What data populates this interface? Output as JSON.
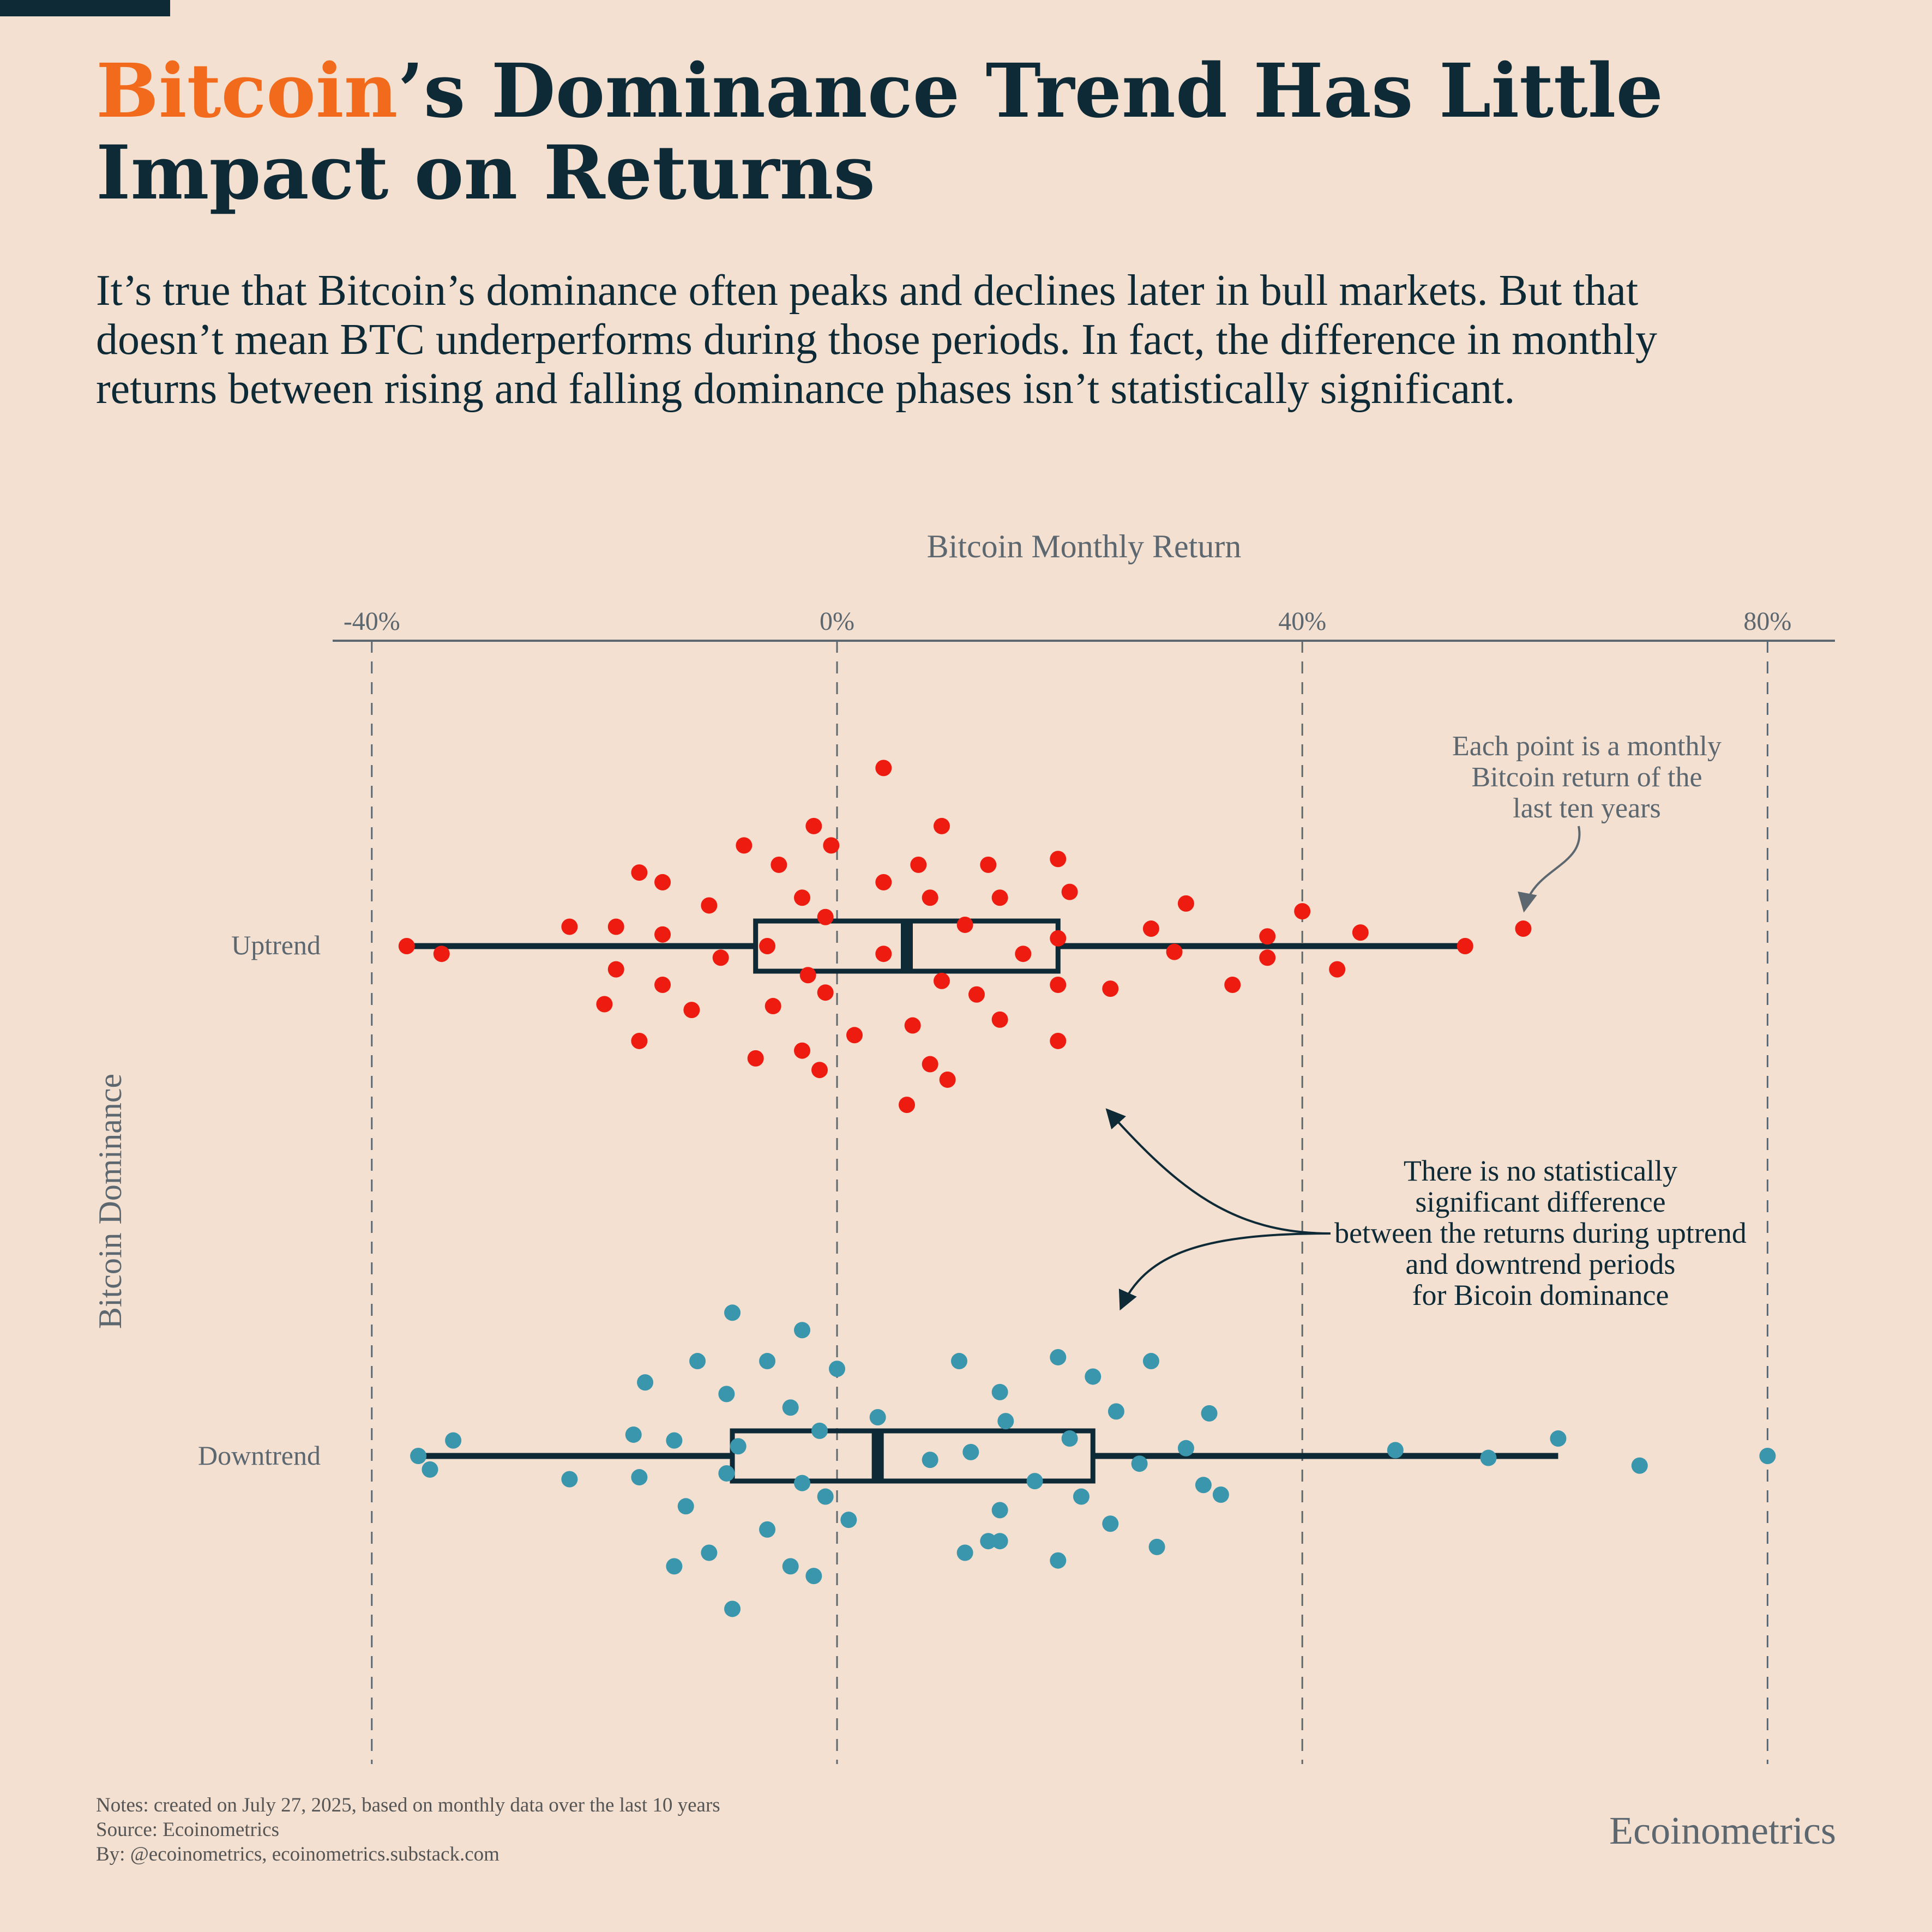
{
  "title": {
    "highlight": "Bitcoin",
    "rest": "’s Dominance Trend Has Little Impact on Returns"
  },
  "subtitle": "It’s true that Bitcoin’s dominance often peaks and declines later in bull markets. But that doesn’t mean BTC underperforms during those periods. In fact, the difference in monthly returns between rising and falling dominance phases isn’t statistically significant.",
  "colors": {
    "background": "#f3e0d0",
    "ink": "#0d2a36",
    "accent": "#f26b1d",
    "uptrend": "#ee1c10",
    "downtrend": "#3a96ad",
    "axis": "#5c6770"
  },
  "chart_data": {
    "type": "scatter",
    "xlabel": "Bitcoin Monthly Return",
    "ylabel": "Bitcoin Dominance",
    "xlim": [
      -43,
      86
    ],
    "xticks": [
      -40,
      0,
      40,
      80
    ],
    "xtick_labels": [
      "-40%",
      "0%",
      "40%",
      "80%"
    ],
    "grid": "vertical dashed",
    "categories": [
      "Uptrend",
      "Downtrend"
    ],
    "series": [
      {
        "name": "Uptrend",
        "box": {
          "whisker_low": -37,
          "q1": -7,
          "median": 6,
          "q3": 19,
          "whisker_high": 54
        },
        "points": [
          [
            4,
            0.92
          ],
          [
            9,
            0.62
          ],
          [
            -2,
            0.62
          ],
          [
            -8,
            0.52
          ],
          [
            -0.5,
            0.52
          ],
          [
            -5,
            0.42
          ],
          [
            7,
            0.42
          ],
          [
            13,
            0.42
          ],
          [
            19,
            0.45
          ],
          [
            -17,
            0.38
          ],
          [
            -15,
            0.33
          ],
          [
            4,
            0.33
          ],
          [
            -11,
            0.21
          ],
          [
            -3,
            0.25
          ],
          [
            8,
            0.25
          ],
          [
            14,
            0.25
          ],
          [
            20,
            0.28
          ],
          [
            30,
            0.22
          ],
          [
            -23,
            0.1
          ],
          [
            -19,
            0.1
          ],
          [
            -15,
            0.06
          ],
          [
            -1,
            0.15
          ],
          [
            11,
            0.11
          ],
          [
            27,
            0.09
          ],
          [
            40,
            0.18
          ],
          [
            45,
            0.07
          ],
          [
            59,
            0.09
          ],
          [
            -37,
            0
          ],
          [
            -34,
            -0.04
          ],
          [
            -10,
            -0.06
          ],
          [
            -6,
            0.0
          ],
          [
            4,
            -0.04
          ],
          [
            16,
            -0.04
          ],
          [
            19,
            0.04
          ],
          [
            29,
            -0.03
          ],
          [
            37,
            0.05
          ],
          [
            37,
            -0.06
          ],
          [
            -19,
            -0.12
          ],
          [
            -15,
            -0.2
          ],
          [
            -2.5,
            -0.15
          ],
          [
            9,
            -0.18
          ],
          [
            12,
            -0.25
          ],
          [
            19,
            -0.2
          ],
          [
            23.5,
            -0.22
          ],
          [
            34,
            -0.2
          ],
          [
            43,
            -0.12
          ],
          [
            -20,
            -0.3
          ],
          [
            -12.5,
            -0.33
          ],
          [
            -5.5,
            -0.31
          ],
          [
            -1,
            -0.24
          ],
          [
            6.5,
            -0.41
          ],
          [
            14,
            -0.38
          ],
          [
            -17,
            -0.49
          ],
          [
            1.5,
            -0.46
          ],
          [
            19,
            -0.49
          ],
          [
            -7,
            -0.58
          ],
          [
            -3,
            -0.54
          ],
          [
            -1.5,
            -0.64
          ],
          [
            8,
            -0.61
          ],
          [
            9.5,
            -0.69
          ],
          [
            6,
            -0.82
          ],
          [
            54,
            0.0
          ]
        ]
      },
      {
        "name": "Downtrend",
        "box": {
          "whisker_low": -36,
          "q1": -9,
          "median": 3.5,
          "q3": 22,
          "whisker_high": 62
        },
        "points": [
          [
            -9,
            0.74
          ],
          [
            -3,
            0.65
          ],
          [
            -12,
            0.49
          ],
          [
            -6,
            0.49
          ],
          [
            0,
            0.45
          ],
          [
            10.5,
            0.49
          ],
          [
            19,
            0.51
          ],
          [
            22,
            0.41
          ],
          [
            27,
            0.49
          ],
          [
            -16.5,
            0.38
          ],
          [
            -9.5,
            0.32
          ],
          [
            14,
            0.33
          ],
          [
            -4,
            0.25
          ],
          [
            3.5,
            0.2
          ],
          [
            14.5,
            0.18
          ],
          [
            24,
            0.23
          ],
          [
            32,
            0.22
          ],
          [
            -17.5,
            0.11
          ],
          [
            -14,
            0.08
          ],
          [
            -1.5,
            0.13
          ],
          [
            -8.5,
            0.05
          ],
          [
            20,
            0.09
          ],
          [
            30,
            0.04
          ],
          [
            48,
            0.03
          ],
          [
            62,
            0.09
          ],
          [
            -36,
            0
          ],
          [
            -33,
            0.08
          ],
          [
            -35,
            -0.07
          ],
          [
            8,
            -0.02
          ],
          [
            11.5,
            0.02
          ],
          [
            26,
            -0.04
          ],
          [
            56,
            -0.01
          ],
          [
            69,
            -0.05
          ],
          [
            80,
            0.0
          ],
          [
            -23,
            -0.12
          ],
          [
            -17,
            -0.11
          ],
          [
            -9.5,
            -0.09
          ],
          [
            -3,
            -0.14
          ],
          [
            17,
            -0.13
          ],
          [
            31.5,
            -0.15
          ],
          [
            33,
            -0.2
          ],
          [
            -13,
            -0.26
          ],
          [
            -1,
            -0.21
          ],
          [
            1,
            -0.33
          ],
          [
            14,
            -0.28
          ],
          [
            21,
            -0.21
          ],
          [
            23.5,
            -0.35
          ],
          [
            -6,
            -0.38
          ],
          [
            -11,
            -0.5
          ],
          [
            -14,
            -0.57
          ],
          [
            -4,
            -0.57
          ],
          [
            -2,
            -0.62
          ],
          [
            11,
            -0.5
          ],
          [
            14,
            -0.44
          ],
          [
            19,
            -0.54
          ],
          [
            27.5,
            -0.47
          ],
          [
            -9,
            -0.79
          ],
          [
            13,
            -0.44
          ]
        ]
      }
    ],
    "annotations": [
      "Each point is a monthly Bitcoin return of the last ten years",
      "There is no statistically significant difference between the returns during uptrend and downtrend periods for Bicoin dominance"
    ]
  },
  "footer": {
    "notes": "Notes: created on July 27, 2025, based on monthly data over the last 10 years",
    "source": "Source: Ecoinometrics",
    "by": "By: @ecoinometrics, ecoinometrics.substack.com",
    "brand": "Ecoinometrics"
  }
}
